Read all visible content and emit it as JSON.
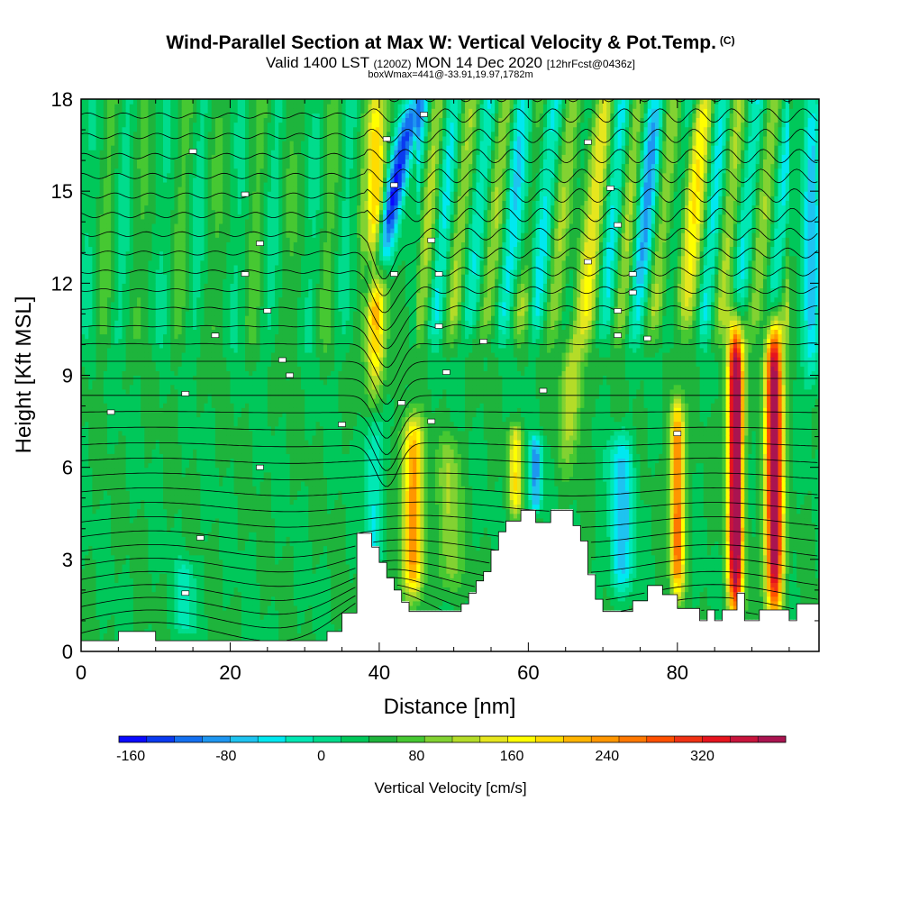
{
  "header": {
    "title": "Wind-Parallel Section at Max W: Vertical Velocity & Pot.Temp.",
    "copyright": "(C)",
    "valid_a": "Valid 1400 LST",
    "valid_utc": "(1200Z)",
    "valid_b": "MON 14 Dec 2020",
    "fcst": "[12hrFcst@0436z]",
    "box": "boxWmax=441@-33.91,19.97,1782m"
  },
  "chart_data": {
    "type": "heatmap",
    "xlabel": "Distance [nm]",
    "ylabel": "Height [Kft MSL]",
    "xlim": [
      0,
      99
    ],
    "ylim": [
      0,
      18
    ],
    "xticks": [
      0,
      20,
      40,
      60,
      80
    ],
    "yticks": [
      0,
      3,
      6,
      9,
      12,
      15,
      18
    ],
    "x_tick_labels": [
      "0",
      "20",
      "40",
      "60",
      "80"
    ],
    "y_tick_labels": [
      "0",
      "3",
      "6",
      "9",
      "12",
      "15",
      "18"
    ],
    "colorbar": {
      "title": "Vertical Velocity [cm/s]",
      "min": -170,
      "max": 390,
      "step": 20,
      "tick_values": [
        -160,
        -80,
        0,
        80,
        160,
        240,
        320
      ],
      "tick_labels": [
        "-160",
        "-80",
        "0",
        "80",
        "160",
        "240",
        "320"
      ],
      "colors": [
        "#0a0aff",
        "#0a3af0",
        "#1470f0",
        "#1e96f0",
        "#1ec3f0",
        "#00e8f0",
        "#00e8b4",
        "#00dc8c",
        "#00c85a",
        "#1eb43c",
        "#46c832",
        "#82d232",
        "#b4dc28",
        "#e6e61e",
        "#ffff00",
        "#ffdc00",
        "#ffb400",
        "#ff9600",
        "#ff7800",
        "#ff5000",
        "#f03214",
        "#e6141e",
        "#c8143c",
        "#aa1450"
      ]
    },
    "terrain": [
      [
        0,
        0.35
      ],
      [
        5,
        0.35
      ],
      [
        5,
        0.65
      ],
      [
        10,
        0.65
      ],
      [
        10,
        0.35
      ],
      [
        33,
        0.35
      ],
      [
        33,
        0.65
      ],
      [
        35,
        0.65
      ],
      [
        35,
        1.25
      ],
      [
        37,
        1.25
      ],
      [
        37,
        3.85
      ],
      [
        39,
        3.85
      ],
      [
        39,
        3.4
      ],
      [
        40,
        3.4
      ],
      [
        40,
        2.9
      ],
      [
        41,
        2.9
      ],
      [
        41,
        2.4
      ],
      [
        42,
        2.4
      ],
      [
        42,
        2.0
      ],
      [
        43,
        2.0
      ],
      [
        43,
        1.6
      ],
      [
        44,
        1.6
      ],
      [
        44,
        1.3
      ],
      [
        51,
        1.3
      ],
      [
        51,
        1.55
      ],
      [
        52,
        1.55
      ],
      [
        52,
        1.9
      ],
      [
        53,
        1.9
      ],
      [
        53,
        2.3
      ],
      [
        54,
        2.3
      ],
      [
        54,
        2.6
      ],
      [
        55,
        2.6
      ],
      [
        55,
        3.3
      ],
      [
        56,
        3.3
      ],
      [
        56,
        3.9
      ],
      [
        57,
        3.9
      ],
      [
        57,
        4.25
      ],
      [
        59,
        4.25
      ],
      [
        59,
        4.6
      ],
      [
        61,
        4.6
      ],
      [
        61,
        4.2
      ],
      [
        63,
        4.2
      ],
      [
        63,
        4.6
      ],
      [
        66,
        4.6
      ],
      [
        66,
        4.1
      ],
      [
        67,
        4.1
      ],
      [
        67,
        3.6
      ],
      [
        68,
        3.6
      ],
      [
        68,
        2.5
      ],
      [
        69,
        2.5
      ],
      [
        69,
        1.7
      ],
      [
        70,
        1.7
      ],
      [
        70,
        1.3
      ],
      [
        74,
        1.3
      ],
      [
        74,
        1.65
      ],
      [
        76,
        1.65
      ],
      [
        76,
        2.15
      ],
      [
        78,
        2.15
      ],
      [
        78,
        1.85
      ],
      [
        80,
        1.85
      ],
      [
        80,
        1.4
      ],
      [
        83,
        1.4
      ],
      [
        83,
        1.0
      ],
      [
        84,
        1.0
      ],
      [
        84,
        1.35
      ],
      [
        85,
        1.35
      ],
      [
        85,
        1.0
      ],
      [
        86,
        1.0
      ],
      [
        86,
        1.35
      ],
      [
        88,
        1.35
      ],
      [
        88,
        1.9
      ],
      [
        89,
        1.9
      ],
      [
        89,
        1.0
      ],
      [
        91,
        1.0
      ],
      [
        91,
        1.35
      ],
      [
        95,
        1.35
      ],
      [
        95,
        1.0
      ],
      [
        96,
        1.0
      ],
      [
        96,
        1.55
      ],
      [
        99,
        1.55
      ]
    ],
    "w_features": [
      {
        "x": 39.5,
        "z0": 8.8,
        "z1": 18.2,
        "w": 150,
        "width": 1.3,
        "tilt": 0.0
      },
      {
        "x": 44.5,
        "z0": 2.0,
        "z1": 7.5,
        "w": 170,
        "width": 1.4,
        "tilt": 0.0
      },
      {
        "x": 49.5,
        "z0": 2.0,
        "z1": 7.0,
        "w": 60,
        "width": 1.5,
        "tilt": 0.0
      },
      {
        "x": 58.3,
        "z0": 4.5,
        "z1": 7.3,
        "w": 110,
        "width": 0.9,
        "tilt": 0.0
      },
      {
        "x": 67.0,
        "z0": 6.5,
        "z1": 18.0,
        "w": 80,
        "width": 1.6,
        "tilt": 0.3
      },
      {
        "x": 80.0,
        "z0": 2.0,
        "z1": 8.0,
        "w": 200,
        "width": 0.9,
        "tilt": 0.0
      },
      {
        "x": 81.5,
        "z0": 11.0,
        "z1": 18.0,
        "w": 90,
        "width": 1.5,
        "tilt": 0.4
      },
      {
        "x": 87.8,
        "z0": 1.5,
        "z1": 10.5,
        "w": 350,
        "width": 1.0,
        "tilt": 0.0
      },
      {
        "x": 93.0,
        "z0": 1.5,
        "z1": 10.5,
        "w": 330,
        "width": 1.1,
        "tilt": 0.0
      },
      {
        "x": 42.0,
        "z0": 12.0,
        "z1": 18.0,
        "w": -160,
        "width": 1.4,
        "tilt": 0.9
      },
      {
        "x": 39.2,
        "z0": 3.0,
        "z1": 7.5,
        "w": -60,
        "width": 1.3,
        "tilt": 0.0
      },
      {
        "x": 61.0,
        "z0": 4.6,
        "z1": 7.0,
        "w": -110,
        "width": 0.8,
        "tilt": 0.0
      },
      {
        "x": 72.5,
        "z0": 2.0,
        "z1": 7.0,
        "w": -90,
        "width": 1.6,
        "tilt": 0.0
      },
      {
        "x": 98.0,
        "z0": 9.0,
        "z1": 18.0,
        "w": -90,
        "width": 1.2,
        "tilt": 0.0
      },
      {
        "x": 14.0,
        "z0": 0.6,
        "z1": 3.0,
        "w": -50,
        "width": 1.4,
        "tilt": 0.0
      },
      {
        "x": 60.0,
        "z0": 12.0,
        "z1": 18.0,
        "w": -60,
        "width": 1.5,
        "tilt": 0.3
      },
      {
        "x": 76.0,
        "z0": 12.0,
        "z1": 18.0,
        "w": -50,
        "width": 1.5,
        "tilt": 0.3
      }
    ],
    "w_waves": [
      {
        "x0": 0,
        "x1": 38,
        "z0": 9.0,
        "z1": 18.0,
        "amp": 25,
        "period": 5.0,
        "tilt": 0.15
      },
      {
        "x0": 45,
        "x1": 95,
        "z0": 9.5,
        "z1": 18.0,
        "amp": 60,
        "period": 4.5,
        "tilt": 0.35
      }
    ],
    "theta_levels": 42,
    "theta_labels": [
      {
        "x": 15,
        "z": 16.3
      },
      {
        "x": 22,
        "z": 14.9
      },
      {
        "x": 24,
        "z": 13.3
      },
      {
        "x": 22,
        "z": 12.3
      },
      {
        "x": 25,
        "z": 11.1
      },
      {
        "x": 18,
        "z": 10.3
      },
      {
        "x": 27,
        "z": 9.5
      },
      {
        "x": 28,
        "z": 9.0
      },
      {
        "x": 14,
        "z": 8.4
      },
      {
        "x": 4,
        "z": 7.8
      },
      {
        "x": 24,
        "z": 6.0
      },
      {
        "x": 16,
        "z": 3.7
      },
      {
        "x": 14,
        "z": 1.9
      },
      {
        "x": 41,
        "z": 16.7
      },
      {
        "x": 46,
        "z": 17.5
      },
      {
        "x": 42,
        "z": 15.2
      },
      {
        "x": 47,
        "z": 13.4
      },
      {
        "x": 42,
        "z": 12.3
      },
      {
        "x": 48,
        "z": 12.3
      },
      {
        "x": 48,
        "z": 10.6
      },
      {
        "x": 49,
        "z": 9.1
      },
      {
        "x": 43,
        "z": 8.1
      },
      {
        "x": 47,
        "z": 7.5
      },
      {
        "x": 35,
        "z": 7.4
      },
      {
        "x": 54,
        "z": 10.1
      },
      {
        "x": 62,
        "z": 8.5
      },
      {
        "x": 68,
        "z": 16.6
      },
      {
        "x": 71,
        "z": 15.1
      },
      {
        "x": 72,
        "z": 13.9
      },
      {
        "x": 68,
        "z": 12.7
      },
      {
        "x": 74,
        "z": 12.3
      },
      {
        "x": 74,
        "z": 11.7
      },
      {
        "x": 72,
        "z": 11.1
      },
      {
        "x": 72,
        "z": 10.3
      },
      {
        "x": 76,
        "z": 10.2
      },
      {
        "x": 80,
        "z": 7.1
      }
    ]
  }
}
